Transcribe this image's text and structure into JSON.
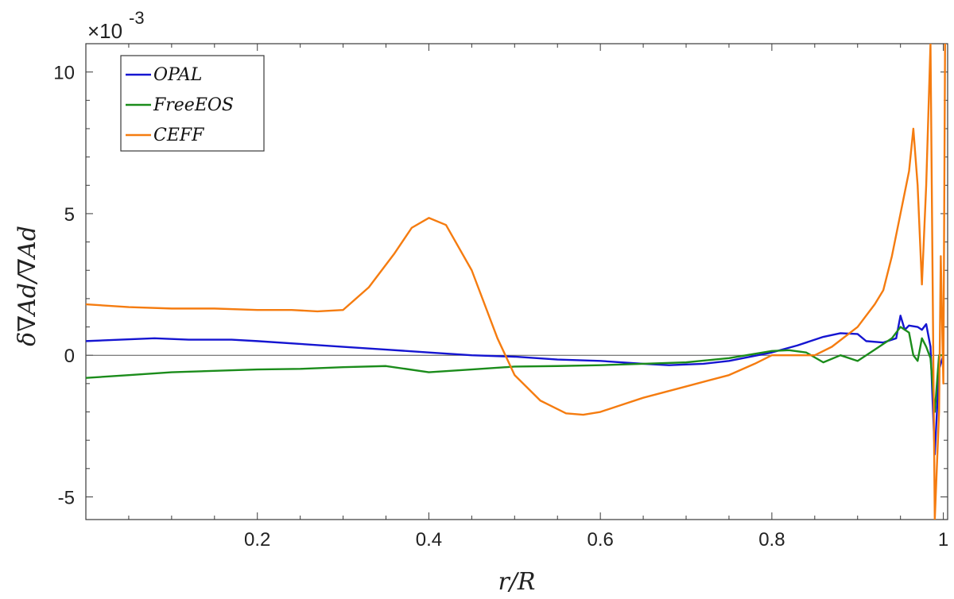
{
  "chart_data": {
    "type": "line",
    "xlabel": "r/R",
    "ylabel": "δ∇Ad/∇Ad",
    "y_multiplier": "×10",
    "y_multiplier_exp": "-3",
    "xlim": [
      0.0,
      1.005
    ],
    "ylim": [
      -5.8,
      11.0
    ],
    "x_ticks": [
      0.2,
      0.4,
      0.6,
      0.8,
      1.0
    ],
    "x_tick_labels": [
      "0.2",
      "0.4",
      "0.6",
      "0.8",
      "1"
    ],
    "y_ticks": [
      -5,
      0,
      5,
      10
    ],
    "y_tick_labels": [
      "-5",
      "0",
      "5",
      "10"
    ],
    "reference_line_y": 0,
    "grid": false,
    "legend_position": "top-left",
    "legend_entries": [
      "OPAL",
      "FreeEOS",
      "CEFF"
    ],
    "series": [
      {
        "name": "OPAL",
        "color": "#1515d1",
        "points": [
          [
            0.0,
            0.5
          ],
          [
            0.04,
            0.55
          ],
          [
            0.08,
            0.6
          ],
          [
            0.12,
            0.55
          ],
          [
            0.17,
            0.55
          ],
          [
            0.2,
            0.5
          ],
          [
            0.25,
            0.4
          ],
          [
            0.3,
            0.3
          ],
          [
            0.35,
            0.2
          ],
          [
            0.4,
            0.1
          ],
          [
            0.45,
            0.0
          ],
          [
            0.5,
            -0.05
          ],
          [
            0.55,
            -0.15
          ],
          [
            0.6,
            -0.2
          ],
          [
            0.65,
            -0.3
          ],
          [
            0.68,
            -0.35
          ],
          [
            0.72,
            -0.3
          ],
          [
            0.75,
            -0.2
          ],
          [
            0.8,
            0.1
          ],
          [
            0.83,
            0.35
          ],
          [
            0.86,
            0.65
          ],
          [
            0.88,
            0.78
          ],
          [
            0.9,
            0.75
          ],
          [
            0.91,
            0.5
          ],
          [
            0.93,
            0.45
          ],
          [
            0.945,
            0.6
          ],
          [
            0.95,
            1.4
          ],
          [
            0.955,
            0.9
          ],
          [
            0.96,
            1.05
          ],
          [
            0.97,
            1.0
          ],
          [
            0.975,
            0.9
          ],
          [
            0.98,
            1.1
          ],
          [
            0.985,
            0.3
          ],
          [
            0.99,
            -3.5
          ],
          [
            0.995,
            -0.5
          ],
          [
            1.0,
            0.0
          ]
        ]
      },
      {
        "name": "FreeEOS",
        "color": "#1b8c1b",
        "points": [
          [
            0.0,
            -0.8
          ],
          [
            0.05,
            -0.7
          ],
          [
            0.1,
            -0.6
          ],
          [
            0.2,
            -0.5
          ],
          [
            0.25,
            -0.48
          ],
          [
            0.3,
            -0.42
          ],
          [
            0.35,
            -0.38
          ],
          [
            0.4,
            -0.6
          ],
          [
            0.45,
            -0.5
          ],
          [
            0.5,
            -0.4
          ],
          [
            0.55,
            -0.38
          ],
          [
            0.6,
            -0.35
          ],
          [
            0.65,
            -0.3
          ],
          [
            0.7,
            -0.25
          ],
          [
            0.75,
            -0.1
          ],
          [
            0.8,
            0.15
          ],
          [
            0.82,
            0.18
          ],
          [
            0.84,
            0.1
          ],
          [
            0.86,
            -0.25
          ],
          [
            0.88,
            0.0
          ],
          [
            0.9,
            -0.2
          ],
          [
            0.92,
            0.2
          ],
          [
            0.94,
            0.6
          ],
          [
            0.95,
            1.0
          ],
          [
            0.96,
            0.8
          ],
          [
            0.965,
            0.0
          ],
          [
            0.97,
            -0.2
          ],
          [
            0.975,
            0.6
          ],
          [
            0.98,
            0.3
          ],
          [
            0.985,
            -0.1
          ],
          [
            0.99,
            -2.0
          ],
          [
            0.995,
            0.0
          ],
          [
            1.0,
            0.0
          ]
        ]
      },
      {
        "name": "CEFF",
        "color": "#f57c10",
        "points": [
          [
            0.0,
            1.8
          ],
          [
            0.05,
            1.7
          ],
          [
            0.1,
            1.65
          ],
          [
            0.15,
            1.65
          ],
          [
            0.2,
            1.6
          ],
          [
            0.24,
            1.6
          ],
          [
            0.27,
            1.55
          ],
          [
            0.3,
            1.6
          ],
          [
            0.33,
            2.4
          ],
          [
            0.36,
            3.6
          ],
          [
            0.38,
            4.5
          ],
          [
            0.4,
            4.85
          ],
          [
            0.42,
            4.6
          ],
          [
            0.45,
            3.0
          ],
          [
            0.48,
            0.6
          ],
          [
            0.5,
            -0.7
          ],
          [
            0.53,
            -1.6
          ],
          [
            0.56,
            -2.05
          ],
          [
            0.58,
            -2.1
          ],
          [
            0.6,
            -2.0
          ],
          [
            0.65,
            -1.5
          ],
          [
            0.7,
            -1.1
          ],
          [
            0.75,
            -0.7
          ],
          [
            0.78,
            -0.3
          ],
          [
            0.8,
            0.0
          ],
          [
            0.83,
            0.0
          ],
          [
            0.85,
            0.0
          ],
          [
            0.87,
            0.3
          ],
          [
            0.9,
            1.0
          ],
          [
            0.92,
            1.8
          ],
          [
            0.93,
            2.3
          ],
          [
            0.94,
            3.5
          ],
          [
            0.95,
            5.0
          ],
          [
            0.96,
            6.5
          ],
          [
            0.965,
            8.0
          ],
          [
            0.97,
            6.0
          ],
          [
            0.975,
            2.5
          ],
          [
            0.98,
            6.0
          ],
          [
            0.985,
            11.0
          ],
          [
            0.99,
            -5.8
          ],
          [
            0.995,
            -2.0
          ],
          [
            0.997,
            3.5
          ],
          [
            1.0,
            -1.0
          ],
          [
            1.002,
            11.0
          ]
        ]
      }
    ]
  }
}
